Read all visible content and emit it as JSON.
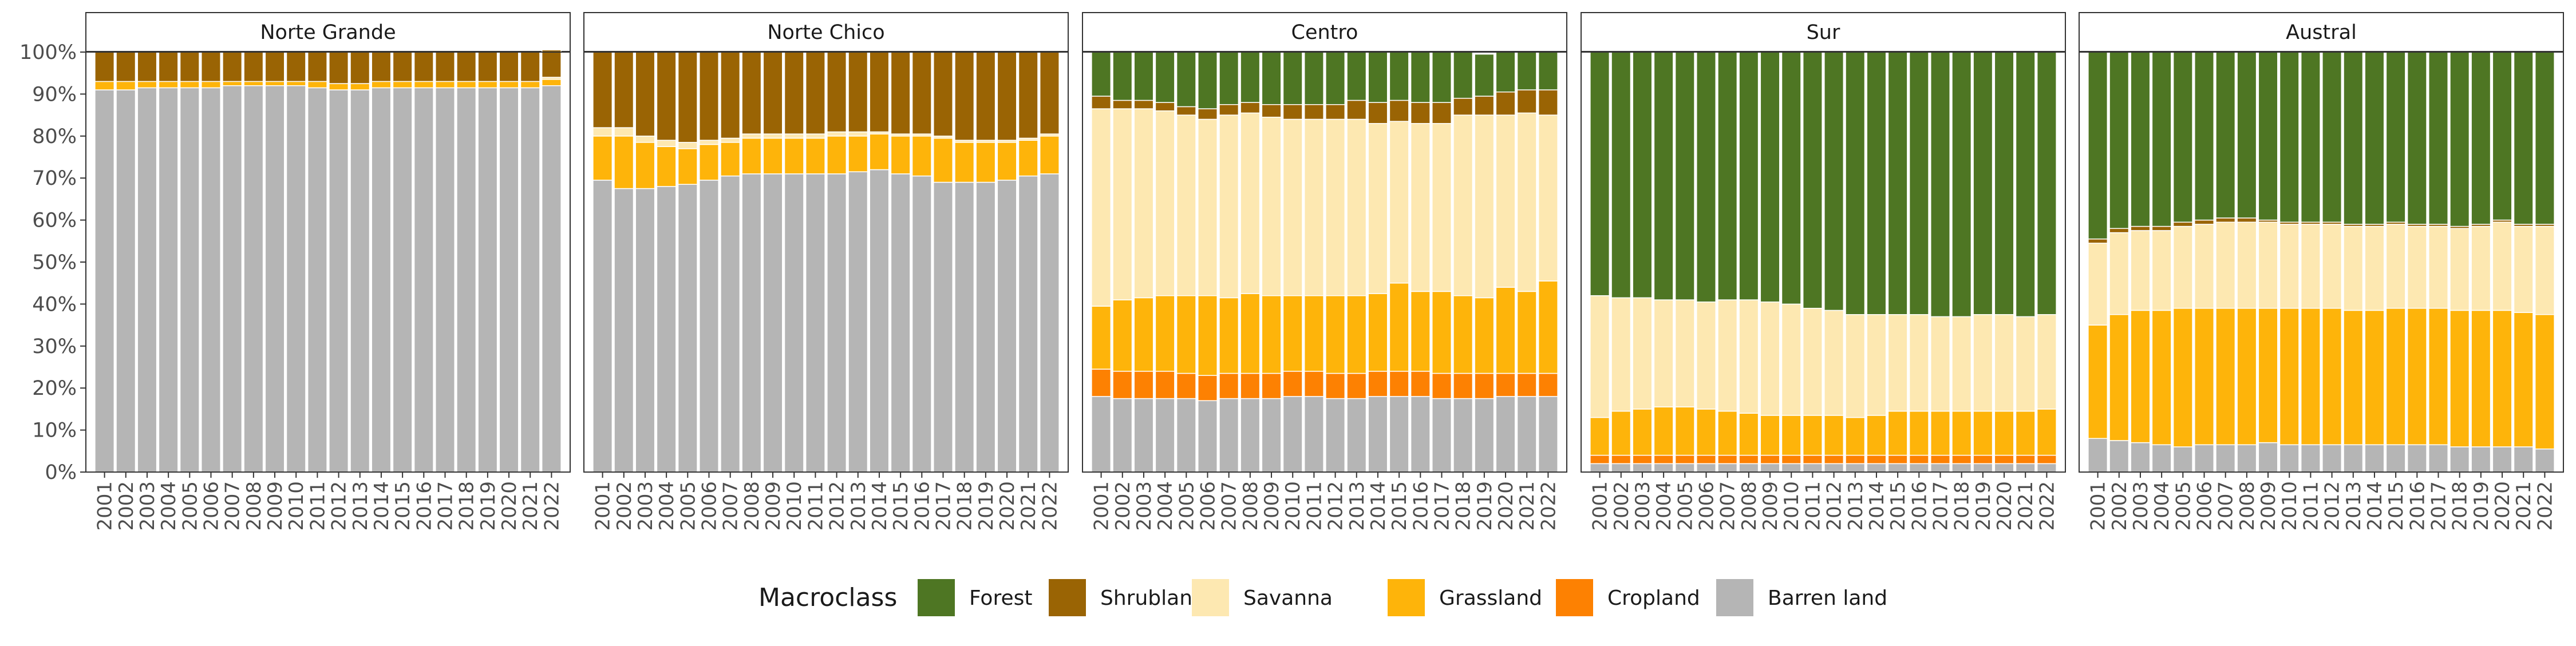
{
  "chart_data": {
    "type": "bar",
    "stacked": "percent",
    "years": [
      "2001",
      "2002",
      "2003",
      "2004",
      "2005",
      "2006",
      "2007",
      "2008",
      "2009",
      "2010",
      "2011",
      "2012",
      "2013",
      "2014",
      "2015",
      "2016",
      "2017",
      "2018",
      "2019",
      "2020",
      "2021",
      "2022"
    ],
    "y_ticks": [
      "0%",
      "10%",
      "20%",
      "30%",
      "40%",
      "50%",
      "60%",
      "70%",
      "80%",
      "90%",
      "100%"
    ],
    "ylim": [
      0,
      100
    ],
    "grid": false,
    "legend": {
      "title": "Macroclass",
      "position": "bottom",
      "entries": [
        {
          "name": "Forest",
          "color": "#4e7623"
        },
        {
          "name": "Shrubland",
          "color": "#9a6404"
        },
        {
          "name": "Savanna",
          "color": "#fde8b1"
        },
        {
          "name": "Grassland",
          "color": "#feb40a"
        },
        {
          "name": "Cropland",
          "color": "#fd8102"
        },
        {
          "name": "Barren land",
          "color": "#b5b5b5"
        }
      ]
    },
    "panels": [
      {
        "title": "Norte Grande",
        "series": {
          "Barren land": [
            91,
            91,
            91.5,
            91.5,
            91.5,
            91.5,
            92,
            92,
            92,
            92,
            91.5,
            91,
            91,
            91.5,
            91.5,
            91.5,
            91.5,
            91.5,
            91.5,
            91.5,
            91.5,
            92
          ],
          "Cropland": [
            0,
            0,
            0,
            0,
            0,
            0,
            0,
            0,
            0,
            0,
            0,
            0,
            0,
            0,
            0,
            0,
            0,
            0,
            0,
            0,
            0,
            0
          ],
          "Grassland": [
            2,
            2,
            1.5,
            1.5,
            1.5,
            1.5,
            1,
            1,
            1,
            1,
            1.5,
            1.5,
            1.5,
            1.5,
            1.5,
            1.5,
            1.5,
            1.5,
            1.5,
            1.5,
            1.5,
            1.5
          ],
          "Savanna": [
            0,
            0,
            0,
            0,
            0,
            0,
            0,
            0,
            0,
            0,
            0,
            0,
            0,
            0,
            0,
            0,
            0,
            0,
            0,
            0,
            0,
            0.5
          ],
          "Shrubland": [
            7,
            7,
            7,
            7,
            7,
            7,
            7,
            7,
            7,
            7,
            7,
            7.5,
            7.5,
            7,
            7,
            7,
            7,
            7,
            7,
            7,
            7,
            6.5
          ],
          "Forest": [
            0,
            0,
            0,
            0,
            0,
            0,
            0,
            0,
            0,
            0,
            0,
            0,
            0,
            0,
            0,
            0,
            0,
            0,
            0,
            0,
            0,
            0
          ]
        }
      },
      {
        "title": "Norte Chico",
        "series": {
          "Barren land": [
            69.5,
            67.5,
            67.5,
            68,
            68.5,
            69.5,
            70.5,
            71,
            71,
            71,
            71,
            71,
            71.5,
            72,
            71,
            70.5,
            69,
            69,
            69,
            69.5,
            70.5,
            71
          ],
          "Cropland": [
            0,
            0,
            0,
            0,
            0,
            0,
            0,
            0,
            0,
            0,
            0,
            0,
            0,
            0,
            0,
            0,
            0,
            0,
            0,
            0,
            0,
            0
          ],
          "Grassland": [
            10.5,
            12.5,
            11,
            9.5,
            8.5,
            8.5,
            8,
            8.5,
            8.5,
            8.5,
            8.5,
            9,
            8.5,
            8.5,
            9,
            9.5,
            10.5,
            9.5,
            9.5,
            9,
            8.5,
            9
          ],
          "Savanna": [
            2,
            2,
            1.5,
            1.5,
            1.5,
            1,
            1,
            1,
            1,
            1,
            1,
            1,
            1,
            0.5,
            0.5,
            0.5,
            0.5,
            0.5,
            0.5,
            0.5,
            0.5,
            0.5
          ],
          "Shrubland": [
            18,
            18,
            20,
            21,
            21.5,
            21,
            20.5,
            19.5,
            19.5,
            19.5,
            19.5,
            19,
            19,
            19,
            19.5,
            19.5,
            20,
            21,
            21,
            21,
            20.5,
            19.5
          ],
          "Forest": [
            0,
            0,
            0,
            0,
            0,
            0,
            0,
            0,
            0,
            0,
            0,
            0,
            0,
            0,
            0,
            0,
            0,
            0,
            0,
            0,
            0,
            0
          ]
        }
      },
      {
        "title": "Centro",
        "series": {
          "Barren land": [
            18,
            17.5,
            17.5,
            17.5,
            17.5,
            17,
            17.5,
            17.5,
            17.5,
            18,
            18,
            17.5,
            17.5,
            18,
            18,
            18,
            17.5,
            17.5,
            17.5,
            18,
            18,
            18
          ],
          "Cropland": [
            6.5,
            6.5,
            6.5,
            6.5,
            6,
            6,
            6,
            6,
            6,
            6,
            6,
            6,
            6,
            6,
            6,
            6,
            6,
            6,
            6,
            5.5,
            5.5,
            5.5
          ],
          "Grassland": [
            15,
            17,
            17.5,
            18,
            18.5,
            19,
            18,
            19,
            18.5,
            18,
            18,
            18.5,
            18.5,
            18.5,
            21,
            19,
            19.5,
            18.5,
            18,
            20.5,
            19.5,
            22
          ],
          "Savanna": [
            47,
            45.5,
            45,
            44,
            43,
            42,
            43.5,
            43,
            42.5,
            42,
            42,
            42,
            42,
            40.5,
            38.5,
            40,
            40,
            43,
            43.5,
            41,
            42.5,
            39.5
          ],
          "Shrubland": [
            3,
            2,
            2,
            2,
            2,
            2.5,
            2.5,
            2.5,
            3,
            3.5,
            3.5,
            3.5,
            4.5,
            5,
            5,
            5,
            5,
            4,
            4.5,
            5.5,
            5.5,
            6
          ],
          "Forest": [
            10.5,
            11.5,
            11.5,
            12,
            13,
            13.5,
            12.5,
            12,
            12.5,
            12.5,
            12.5,
            12.5,
            11.5,
            12,
            11.5,
            12,
            12,
            11,
            10,
            9.5,
            9,
            9
          ]
        }
      },
      {
        "title": "Sur",
        "series": {
          "Barren land": [
            2,
            2,
            2,
            2,
            2,
            2,
            2,
            2,
            2,
            2,
            2,
            2,
            2,
            2,
            2,
            2,
            2,
            2,
            2,
            2,
            2,
            2
          ],
          "Cropland": [
            2,
            2,
            2,
            2,
            2,
            2,
            2,
            2,
            2,
            2,
            2,
            2,
            2,
            2,
            2,
            2,
            2,
            2,
            2,
            2,
            2,
            2
          ],
          "Grassland": [
            9,
            10.5,
            11,
            11.5,
            11.5,
            11,
            10.5,
            10,
            9.5,
            9.5,
            9.5,
            9.5,
            9,
            9.5,
            10.5,
            10.5,
            10.5,
            10.5,
            10.5,
            10.5,
            10.5,
            11
          ],
          "Savanna": [
            29,
            27,
            26.5,
            25.5,
            25.5,
            25.5,
            26.5,
            27,
            27,
            26.5,
            25.5,
            25,
            24.5,
            24,
            23,
            23,
            22.5,
            22.5,
            23,
            23,
            22.5,
            22.5
          ],
          "Shrubland": [
            0,
            0,
            0,
            0,
            0,
            0,
            0,
            0,
            0,
            0,
            0,
            0,
            0,
            0,
            0,
            0,
            0,
            0,
            0,
            0,
            0,
            0
          ],
          "Forest": [
            58,
            58.5,
            58.5,
            59,
            59,
            59.5,
            59,
            59,
            59.5,
            60,
            61,
            61.5,
            62.5,
            62.5,
            62.5,
            62.5,
            63,
            63,
            62.5,
            62.5,
            63,
            62.5
          ]
        }
      },
      {
        "title": "Austral",
        "series": {
          "Barren land": [
            8,
            7.5,
            7,
            6.5,
            6,
            6.5,
            6.5,
            6.5,
            7,
            6.5,
            6.5,
            6.5,
            6.5,
            6.5,
            6.5,
            6.5,
            6.5,
            6,
            6,
            6,
            6,
            5.5
          ],
          "Cropland": [
            0,
            0,
            0,
            0,
            0,
            0,
            0,
            0,
            0,
            0,
            0,
            0,
            0,
            0,
            0,
            0,
            0,
            0,
            0,
            0,
            0,
            0
          ],
          "Grassland": [
            27,
            30,
            31.5,
            32,
            33,
            32.5,
            32.5,
            32.5,
            32,
            32.5,
            32.5,
            32.5,
            32,
            32,
            32.5,
            32.5,
            32.5,
            32.5,
            32.5,
            32.5,
            32,
            32
          ],
          "Savanna": [
            19.5,
            19.5,
            19,
            19,
            19.5,
            20,
            20.5,
            20.5,
            20.5,
            20,
            20,
            20,
            20,
            20,
            20,
            19.5,
            19.5,
            19.5,
            20,
            21,
            20.5,
            21
          ],
          "Shrubland": [
            1,
            1,
            1,
            1,
            1,
            1,
            1,
            1,
            0.5,
            0.5,
            0.5,
            0.5,
            0.5,
            0.5,
            0.5,
            0.5,
            0.5,
            0.5,
            0.5,
            0.5,
            0.5,
            0.5
          ],
          "Forest": [
            44.5,
            42,
            41.5,
            41.5,
            40.5,
            40,
            39.5,
            39.5,
            40,
            40.5,
            40.5,
            40.5,
            41,
            41,
            40.5,
            41,
            41,
            41.5,
            41,
            40,
            41,
            41
          ]
        }
      }
    ]
  }
}
